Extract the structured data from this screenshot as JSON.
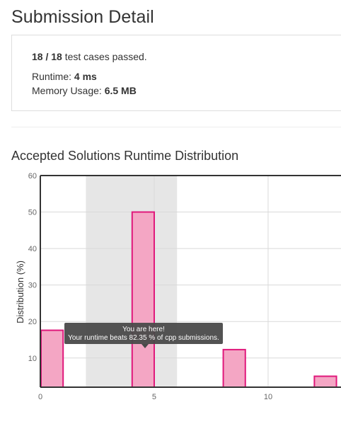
{
  "page": {
    "title": "Submission Detail"
  },
  "summary": {
    "passed": "18 / 18",
    "passed_suffix": " test cases passed.",
    "runtime_label": "Runtime: ",
    "runtime_value": "4 ms",
    "memory_label": "Memory Usage: ",
    "memory_value": "6.5 MB"
  },
  "section": {
    "title": "Accepted Solutions Runtime Distribution"
  },
  "tooltip": {
    "line1": "You are here!",
    "line2": "Your runtime beats 82.35 % of cpp submissions."
  },
  "colors": {
    "bar_fill": "#f4a6c4",
    "bar_stroke": "#e0187b",
    "highlight_band": "#e6e6e6",
    "tooltip_bg": "#4a4a4a"
  },
  "chart_data": {
    "type": "bar",
    "ylabel": "Distribution (%)",
    "xlabel": "",
    "x_ticks": [
      "0",
      "5",
      "10"
    ],
    "y_ticks": [
      "10",
      "20",
      "30",
      "40",
      "50",
      "60"
    ],
    "xlim": [
      0,
      13.2
    ],
    "ylim": [
      2,
      60
    ],
    "bar_width": 1,
    "highlight_range": [
      2,
      6
    ],
    "bars": [
      {
        "x": 1,
        "value": 17.6
      },
      {
        "x": 5,
        "value": 50
      },
      {
        "x": 9,
        "value": 12.3
      },
      {
        "x": 13,
        "value": 5
      }
    ],
    "grid": true
  }
}
